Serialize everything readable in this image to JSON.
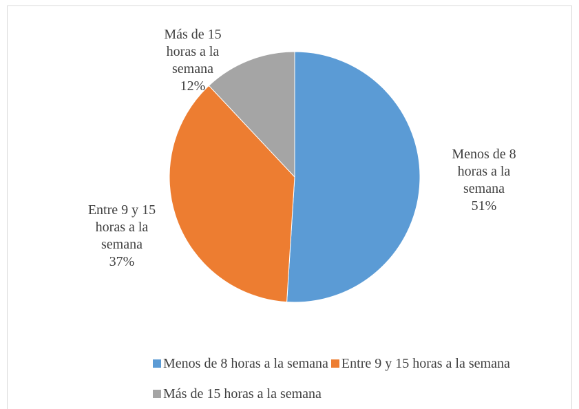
{
  "chart_data": {
    "type": "pie",
    "categories": [
      "Menos de 8 horas a la semana",
      "Entre 9 y 15 horas a la semana",
      "Más de 15 horas a la semana"
    ],
    "values": [
      51,
      37,
      12
    ],
    "value_labels": [
      "51%",
      "37%",
      "12%"
    ],
    "colors": [
      "#5b9bd5",
      "#ed7d31",
      "#a5a5a5"
    ],
    "legend": "bottom"
  }
}
